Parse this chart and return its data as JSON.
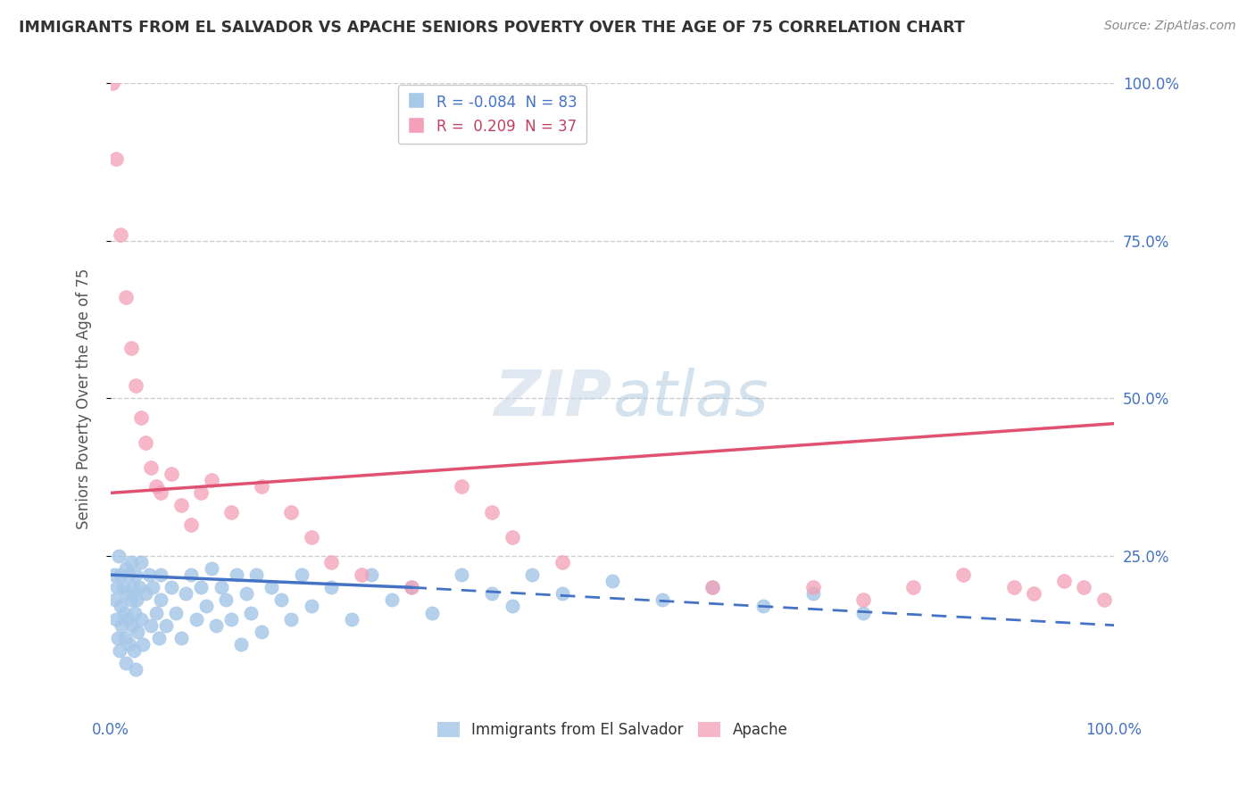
{
  "title": "IMMIGRANTS FROM EL SALVADOR VS APACHE SENIORS POVERTY OVER THE AGE OF 75 CORRELATION CHART",
  "source": "Source: ZipAtlas.com",
  "ylabel": "Seniors Poverty Over the Age of 75",
  "legend_blue_r": "R = -0.084",
  "legend_blue_n": "N = 83",
  "legend_pink_r": "R =  0.209",
  "legend_pink_n": "N = 37",
  "watermark_zip": "ZIP",
  "watermark_atlas": "atlas",
  "blue_color": "#a8c8e8",
  "pink_color": "#f4a0b8",
  "blue_line_color": "#4472c4",
  "pink_line_color": "#e05070",
  "blue_scatter": [
    [
      0.3,
      22.0
    ],
    [
      0.4,
      18.0
    ],
    [
      0.5,
      15.0
    ],
    [
      0.6,
      20.0
    ],
    [
      0.7,
      12.0
    ],
    [
      0.8,
      25.0
    ],
    [
      0.9,
      10.0
    ],
    [
      1.0,
      22.0
    ],
    [
      1.0,
      17.0
    ],
    [
      1.1,
      14.0
    ],
    [
      1.2,
      20.0
    ],
    [
      1.3,
      16.0
    ],
    [
      1.4,
      12.0
    ],
    [
      1.5,
      23.0
    ],
    [
      1.5,
      8.0
    ],
    [
      1.6,
      19.0
    ],
    [
      1.7,
      15.0
    ],
    [
      1.8,
      22.0
    ],
    [
      1.9,
      11.0
    ],
    [
      2.0,
      18.0
    ],
    [
      2.0,
      24.0
    ],
    [
      2.1,
      14.0
    ],
    [
      2.2,
      20.0
    ],
    [
      2.3,
      10.0
    ],
    [
      2.4,
      16.0
    ],
    [
      2.5,
      22.0
    ],
    [
      2.5,
      7.0
    ],
    [
      2.6,
      18.0
    ],
    [
      2.7,
      13.0
    ],
    [
      2.8,
      20.0
    ],
    [
      3.0,
      15.0
    ],
    [
      3.0,
      24.0
    ],
    [
      3.2,
      11.0
    ],
    [
      3.5,
      19.0
    ],
    [
      3.8,
      22.0
    ],
    [
      4.0,
      14.0
    ],
    [
      4.2,
      20.0
    ],
    [
      4.5,
      16.0
    ],
    [
      4.8,
      12.0
    ],
    [
      5.0,
      22.0
    ],
    [
      5.0,
      18.0
    ],
    [
      5.5,
      14.0
    ],
    [
      6.0,
      20.0
    ],
    [
      6.5,
      16.0
    ],
    [
      7.0,
      12.0
    ],
    [
      7.5,
      19.0
    ],
    [
      8.0,
      22.0
    ],
    [
      8.5,
      15.0
    ],
    [
      9.0,
      20.0
    ],
    [
      9.5,
      17.0
    ],
    [
      10.0,
      23.0
    ],
    [
      10.5,
      14.0
    ],
    [
      11.0,
      20.0
    ],
    [
      11.5,
      18.0
    ],
    [
      12.0,
      15.0
    ],
    [
      12.5,
      22.0
    ],
    [
      13.0,
      11.0
    ],
    [
      13.5,
      19.0
    ],
    [
      14.0,
      16.0
    ],
    [
      14.5,
      22.0
    ],
    [
      15.0,
      13.0
    ],
    [
      16.0,
      20.0
    ],
    [
      17.0,
      18.0
    ],
    [
      18.0,
      15.0
    ],
    [
      19.0,
      22.0
    ],
    [
      20.0,
      17.0
    ],
    [
      22.0,
      20.0
    ],
    [
      24.0,
      15.0
    ],
    [
      26.0,
      22.0
    ],
    [
      28.0,
      18.0
    ],
    [
      30.0,
      20.0
    ],
    [
      32.0,
      16.0
    ],
    [
      35.0,
      22.0
    ],
    [
      38.0,
      19.0
    ],
    [
      40.0,
      17.0
    ],
    [
      42.0,
      22.0
    ],
    [
      45.0,
      19.0
    ],
    [
      50.0,
      21.0
    ],
    [
      55.0,
      18.0
    ],
    [
      60.0,
      20.0
    ],
    [
      65.0,
      17.0
    ],
    [
      70.0,
      19.0
    ],
    [
      75.0,
      16.0
    ]
  ],
  "pink_scatter": [
    [
      0.2,
      100.0
    ],
    [
      0.5,
      88.0
    ],
    [
      1.0,
      76.0
    ],
    [
      1.5,
      66.0
    ],
    [
      2.0,
      58.0
    ],
    [
      2.5,
      52.0
    ],
    [
      3.0,
      47.0
    ],
    [
      3.5,
      43.0
    ],
    [
      4.0,
      39.0
    ],
    [
      4.5,
      36.0
    ],
    [
      5.0,
      35.0
    ],
    [
      6.0,
      38.0
    ],
    [
      7.0,
      33.0
    ],
    [
      8.0,
      30.0
    ],
    [
      9.0,
      35.0
    ],
    [
      10.0,
      37.0
    ],
    [
      12.0,
      32.0
    ],
    [
      15.0,
      36.0
    ],
    [
      18.0,
      32.0
    ],
    [
      20.0,
      28.0
    ],
    [
      22.0,
      24.0
    ],
    [
      25.0,
      22.0
    ],
    [
      30.0,
      20.0
    ],
    [
      35.0,
      36.0
    ],
    [
      38.0,
      32.0
    ],
    [
      40.0,
      28.0
    ],
    [
      45.0,
      24.0
    ],
    [
      60.0,
      20.0
    ],
    [
      70.0,
      20.0
    ],
    [
      75.0,
      18.0
    ],
    [
      80.0,
      20.0
    ],
    [
      85.0,
      22.0
    ],
    [
      90.0,
      20.0
    ],
    [
      92.0,
      19.0
    ],
    [
      95.0,
      21.0
    ],
    [
      97.0,
      20.0
    ],
    [
      99.0,
      18.0
    ]
  ],
  "pink_line_x0": 0.0,
  "pink_line_y0": 35.0,
  "pink_line_x1": 100.0,
  "pink_line_y1": 46.0,
  "blue_solid_x0": 0.0,
  "blue_solid_y0": 22.0,
  "blue_solid_x1": 30.0,
  "blue_solid_y1": 20.0,
  "blue_dash_x0": 30.0,
  "blue_dash_y0": 20.0,
  "blue_dash_x1": 100.0,
  "blue_dash_y1": 14.0,
  "xmin": 0.0,
  "xmax": 100.0,
  "ymin": 0.0,
  "ymax": 100.0,
  "ytick_vals": [
    25,
    50,
    75,
    100
  ],
  "ytick_labels": [
    "25.0%",
    "50.0%",
    "75.0%",
    "100.0%"
  ],
  "xtick_vals": [
    0,
    100
  ],
  "xtick_labels": [
    "0.0%",
    "100.0%"
  ],
  "grid_color": "#cccccc",
  "tick_color": "#4472c4",
  "title_color": "#333333",
  "source_color": "#888888"
}
